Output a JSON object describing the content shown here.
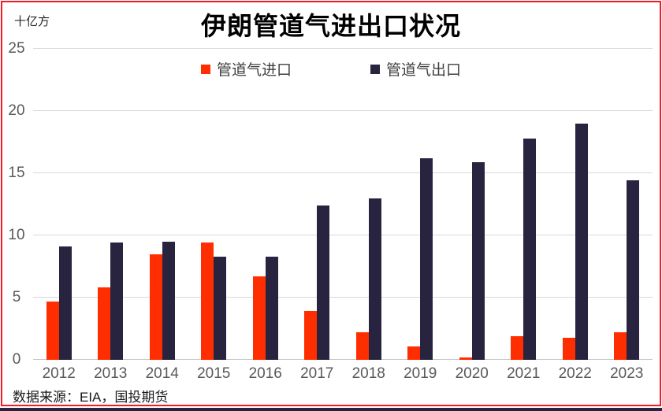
{
  "chart_data": {
    "type": "bar",
    "title": "伊朗管道气进出口状况",
    "unit_label": "十亿方",
    "categories": [
      "2012",
      "2013",
      "2014",
      "2015",
      "2016",
      "2017",
      "2018",
      "2019",
      "2020",
      "2021",
      "2022",
      "2023"
    ],
    "series": [
      {
        "name": "管道气进口",
        "color": "#ff2e00",
        "values": [
          4.7,
          5.8,
          8.5,
          9.4,
          6.7,
          3.9,
          2.2,
          1.1,
          0.2,
          1.9,
          1.8,
          2.2
        ]
      },
      {
        "name": "管道气出口",
        "color": "#282440",
        "values": [
          9.1,
          9.4,
          9.5,
          8.3,
          8.3,
          12.4,
          13.0,
          16.2,
          15.9,
          17.8,
          19.0,
          14.4
        ]
      }
    ],
    "ylim": [
      0,
      25
    ],
    "yticks": [
      0,
      5,
      10,
      15,
      20,
      25
    ],
    "grid": true,
    "legend_position": "top-center"
  },
  "footer": {
    "source": "数据来源：EIA，国投期货"
  },
  "colors": {
    "frame_border": "#ee1c25",
    "bottom_band": "#282440",
    "gridline": "#d9d9d9",
    "axis_text": "#595959",
    "title_text": "#000000",
    "legend_text": "#404040"
  }
}
